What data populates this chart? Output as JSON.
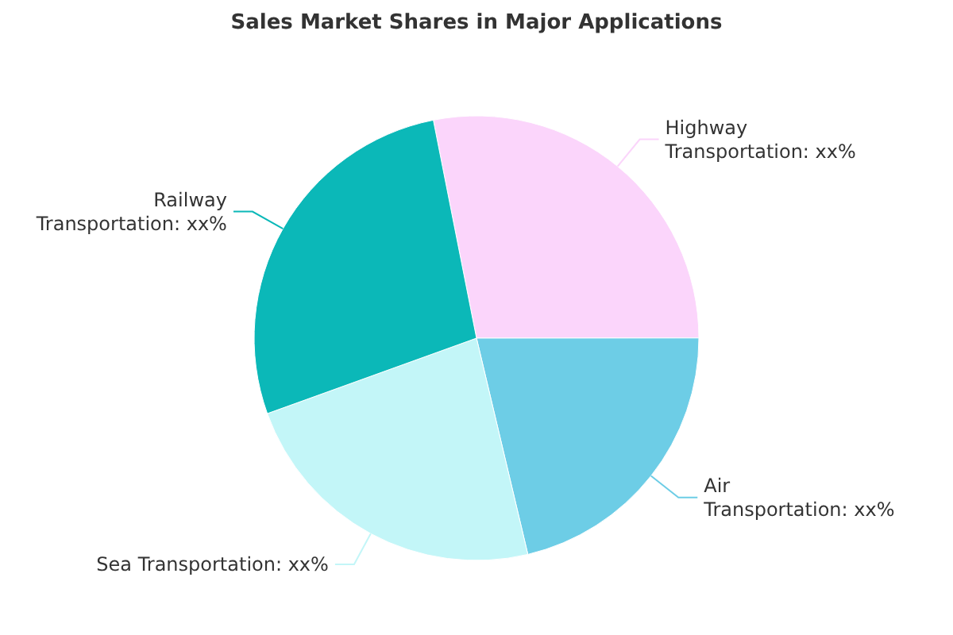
{
  "chart_data": {
    "type": "pie",
    "title": "Sales Market Shares in Major Applications",
    "categories": [
      "Highway Transportation",
      "Air Transportation",
      "Sea Transportation",
      "Railway Transportation"
    ],
    "values": [
      28.1,
      21.3,
      23.2,
      27.4
    ],
    "value_labels": [
      "xx%",
      "xx%",
      "xx%",
      "xx%"
    ],
    "colors": [
      "#fbd5fb",
      "#6dcde6",
      "#c3f6f8",
      "#0bb8b8"
    ]
  }
}
